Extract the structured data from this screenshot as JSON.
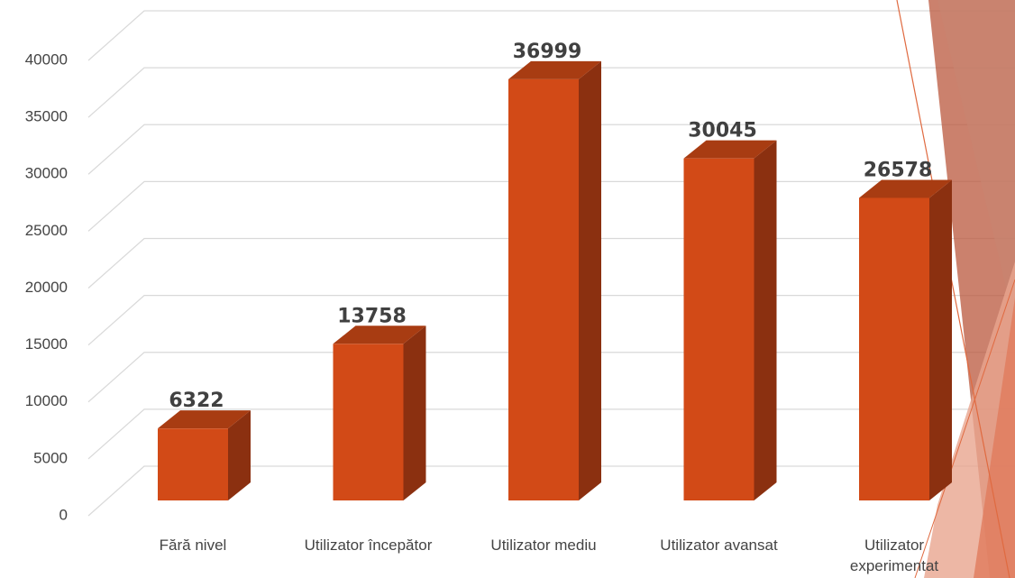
{
  "chart_data": {
    "type": "bar3d",
    "categories": [
      "Fără nivel",
      "Utilizator începător",
      "Utilizator mediu",
      "Utilizator avansat",
      "Utilizator experimentat"
    ],
    "values": [
      6322,
      13758,
      36999,
      30045,
      26578
    ],
    "color": "#d24a17",
    "ylim": [
      0,
      40000
    ],
    "yticks": [
      0,
      5000,
      10000,
      15000,
      20000,
      25000,
      30000,
      35000,
      40000
    ],
    "grid": true
  }
}
